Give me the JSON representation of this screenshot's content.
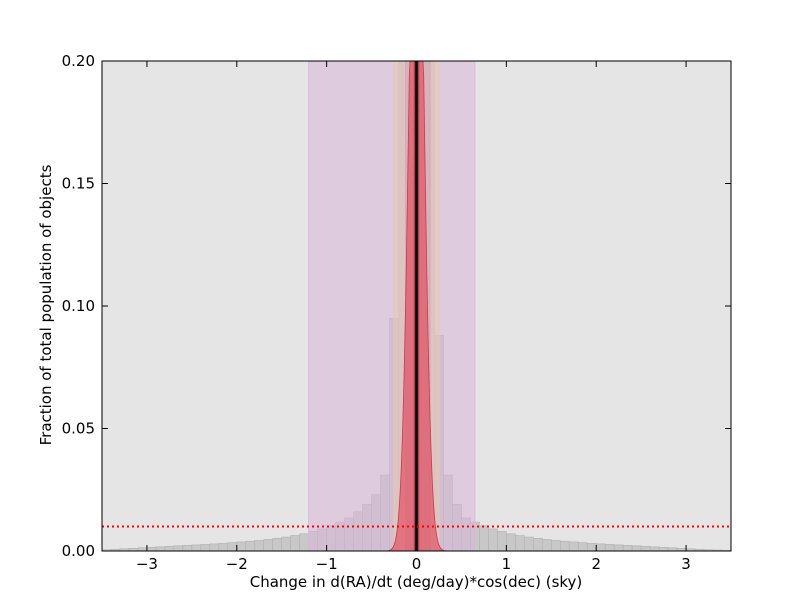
{
  "chart_data": {
    "type": "bar",
    "title": "",
    "xlabel": "Change in d(RA)/dt (deg/day)*cos(dec) (sky)",
    "ylabel": "Fraction of total population of objects",
    "xlim": [
      -3.5,
      3.5
    ],
    "ylim": [
      0,
      0.2
    ],
    "xticks": [
      -3,
      -2,
      -1,
      0,
      1,
      2,
      3
    ],
    "xtick_labels": [
      "−3",
      "−2",
      "−1",
      "0",
      "1",
      "2",
      "3"
    ],
    "yticks": [
      0.0,
      0.05,
      0.1,
      0.15,
      0.2
    ],
    "ytick_labels": [
      "0.00",
      "0.05",
      "0.10",
      "0.15",
      "0.20"
    ],
    "grid": false,
    "background_color": "#e5e5e5",
    "histogram": {
      "bin_width": 0.1,
      "bin_start": -3.5,
      "values": [
        0.0005,
        0.0007,
        0.0009,
        0.0011,
        0.0013,
        0.0015,
        0.0017,
        0.0019,
        0.0021,
        0.0023,
        0.0025,
        0.0027,
        0.0029,
        0.0031,
        0.0034,
        0.0037,
        0.004,
        0.0043,
        0.0047,
        0.0052,
        0.0057,
        0.0063,
        0.007,
        0.008,
        0.009,
        0.0103,
        0.0118,
        0.0135,
        0.016,
        0.019,
        0.023,
        0.031,
        0.095,
        0.2,
        0.2,
        0.2,
        0.2,
        0.088,
        0.031,
        0.019,
        0.0135,
        0.0118,
        0.0103,
        0.009,
        0.008,
        0.007,
        0.0063,
        0.0057,
        0.0052,
        0.0047,
        0.0043,
        0.004,
        0.0037,
        0.0034,
        0.0031,
        0.0029,
        0.0027,
        0.0025,
        0.0023,
        0.0021,
        0.0019,
        0.0017,
        0.0015,
        0.0013,
        0.0011,
        0.0009,
        0.0007,
        0.0005,
        0.0004,
        0.0003
      ],
      "fill_color": "#c8c8c8",
      "edge_color": "#b0b0b0"
    },
    "bands": [
      {
        "x0": -1.2,
        "x1": 0.65,
        "color": "#d9b8d9"
      },
      {
        "x0": -0.25,
        "x1": 0.25,
        "color": "#e7c8b4"
      },
      {
        "x0": -0.12,
        "x1": 0.15,
        "color": "#d4a6b8"
      }
    ],
    "peak": {
      "center": 0.0,
      "sigma": 0.08,
      "height": 0.2,
      "color": "#e05a6a"
    },
    "vertical_line": {
      "x": 0.0,
      "color": "#000000"
    },
    "threshold_line": {
      "y": 0.01,
      "color": "#ff0000",
      "style": "dotted"
    }
  }
}
